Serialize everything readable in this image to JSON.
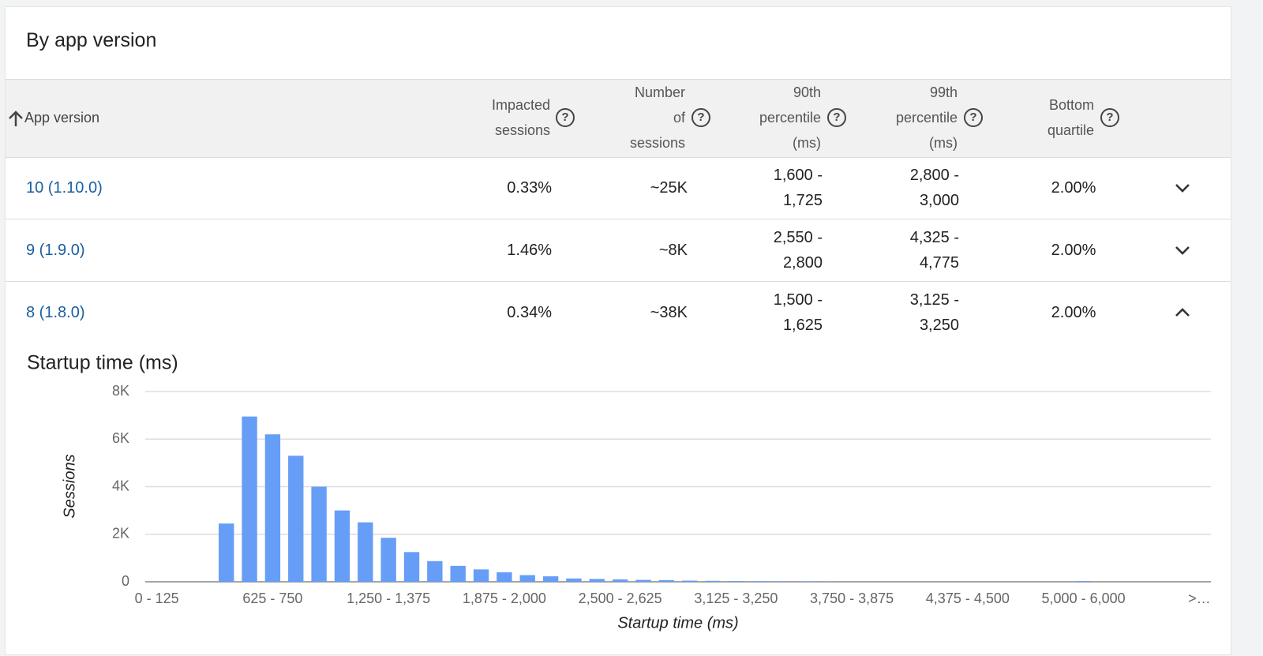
{
  "header": {
    "title": "By app version"
  },
  "table": {
    "columns": [
      "App version",
      "Impacted sessions",
      "Number of sessions",
      "90th percentile (ms)",
      "99th percentile (ms)",
      "Bottom quartile"
    ],
    "rows": [
      [
        "10 (1.10.0)",
        "0.33%",
        "~25K",
        "1,600 - 1,725",
        "2,800 - 3,000",
        "2.00%"
      ],
      [
        "9 (1.9.0)",
        "1.46%",
        "~8K",
        "2,550 - 2,800",
        "4,325 - 4,775",
        "2.00%"
      ],
      [
        "8 (1.8.0)",
        "0.34%",
        "~38K",
        "1,500 - 1,625",
        "3,125 - 3,250",
        "2.00%"
      ]
    ]
  },
  "chart_data": {
    "type": "bar",
    "title": "Startup time (ms)",
    "x_label": "Startup time (ms)",
    "y_label": "Sessions",
    "categories": [
      "0 - 125",
      null,
      null,
      null,
      null,
      "625 - 750",
      null,
      null,
      null,
      null,
      "1,250 - 1,375",
      null,
      null,
      null,
      null,
      "1,875 - 2,000",
      null,
      null,
      null,
      null,
      "2,500 - 2,625",
      null,
      null,
      null,
      null,
      "3,125 - 3,250",
      null,
      null,
      null,
      null,
      "3,750 - 3,875",
      null,
      null,
      null,
      null,
      "4,375 - 4,500",
      null,
      null,
      null,
      null,
      "5,000 - 6,000",
      null,
      null,
      null,
      null,
      ">…"
    ],
    "values": [
      0,
      0,
      0,
      2450,
      6950,
      6200,
      5300,
      4000,
      3000,
      2500,
      1850,
      1250,
      870,
      670,
      520,
      400,
      280,
      230,
      140,
      120,
      100,
      80,
      70,
      50,
      40,
      30,
      25,
      20,
      15,
      10,
      5,
      5,
      5,
      5,
      5,
      5,
      5,
      5,
      5,
      5,
      30,
      0,
      0,
      0,
      0,
      0
    ],
    "color": "#669df6",
    "ylim": [
      0,
      8000
    ],
    "yticks": [
      0,
      {
        "value": 2000,
        "label": "2K"
      },
      {
        "value": 4000,
        "label": "4K"
      },
      {
        "value": 6000,
        "label": "6K"
      },
      {
        "value": 8000,
        "label": "8K"
      }
    ],
    "grid": true
  }
}
